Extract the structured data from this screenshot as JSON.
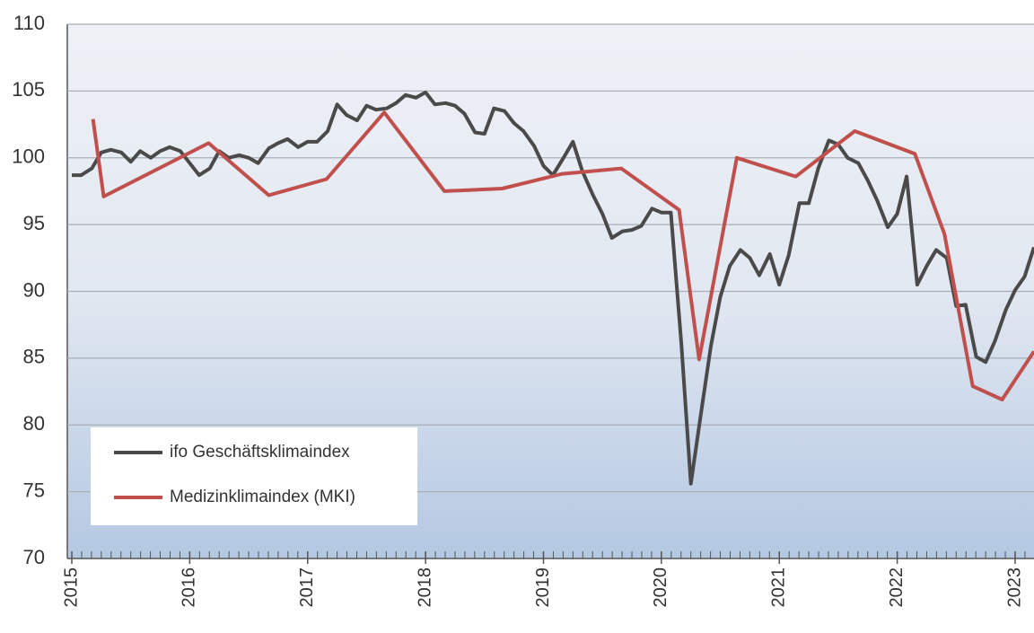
{
  "chart_data": {
    "type": "line",
    "xlim": [
      2015,
      2023.16
    ],
    "xticks": [
      2015,
      2016,
      2017,
      2018,
      2019,
      2020,
      2021,
      2022,
      2023
    ],
    "ylim": [
      70,
      110
    ],
    "yticks": [
      70,
      75,
      80,
      85,
      90,
      95,
      100,
      105,
      110
    ],
    "grid": true,
    "legend": "lower left",
    "series": [
      {
        "name": "ifo Geschäftsklimaindex",
        "color": "#4a4a4a",
        "x": [
          2015,
          2015.08,
          2015.17,
          2015.25,
          2015.33,
          2015.42,
          2015.5,
          2015.58,
          2015.67,
          2015.75,
          2015.83,
          2015.92,
          2016,
          2016.08,
          2016.17,
          2016.25,
          2016.33,
          2016.42,
          2016.5,
          2016.58,
          2016.67,
          2016.75,
          2016.83,
          2016.92,
          2017,
          2017.08,
          2017.17,
          2017.25,
          2017.33,
          2017.42,
          2017.5,
          2017.58,
          2017.67,
          2017.75,
          2017.83,
          2017.92,
          2018,
          2018.08,
          2018.17,
          2018.25,
          2018.33,
          2018.42,
          2018.5,
          2018.58,
          2018.67,
          2018.75,
          2018.83,
          2018.92,
          2019,
          2019.08,
          2019.17,
          2019.25,
          2019.33,
          2019.42,
          2019.5,
          2019.58,
          2019.67,
          2019.75,
          2019.83,
          2019.92,
          2020,
          2020.08,
          2020.17,
          2020.25,
          2020.33,
          2020.42,
          2020.5,
          2020.58,
          2020.67,
          2020.75,
          2020.83,
          2020.92,
          2021,
          2021.08,
          2021.17,
          2021.25,
          2021.33,
          2021.42,
          2021.5,
          2021.58,
          2021.67,
          2021.75,
          2021.83,
          2021.92,
          2022,
          2022.08,
          2022.17,
          2022.25,
          2022.33,
          2022.42,
          2022.5,
          2022.58,
          2022.67,
          2022.75,
          2022.83,
          2022.92,
          2023,
          2023.08,
          2023.16
        ],
        "values": [
          98.7,
          98.7,
          99.2,
          100.4,
          100.6,
          100.4,
          99.7,
          100.5,
          100.0,
          100.5,
          100.8,
          100.5,
          99.6,
          98.7,
          99.2,
          100.5,
          100.0,
          100.2,
          100.0,
          99.6,
          100.7,
          101.1,
          101.4,
          100.8,
          101.2,
          101.2,
          102.0,
          104.0,
          103.2,
          102.8,
          103.9,
          103.6,
          103.7,
          104.1,
          104.7,
          104.5,
          104.9,
          104.0,
          104.1,
          103.9,
          103.3,
          101.9,
          101.8,
          103.7,
          103.5,
          102.6,
          102.0,
          100.9,
          99.4,
          98.7,
          100.0,
          101.2,
          99.0,
          97.2,
          95.8,
          94.0,
          94.5,
          94.6,
          94.9,
          96.2,
          95.9,
          95.9,
          86.0,
          75.6,
          80.5,
          85.9,
          89.6,
          91.9,
          93.1,
          92.5,
          91.2,
          92.8,
          90.5,
          92.7,
          96.6,
          96.6,
          99.2,
          101.3,
          101.0,
          100.0,
          99.6,
          98.3,
          96.8,
          94.8,
          95.8,
          98.6,
          90.5,
          91.9,
          93.1,
          92.5,
          88.9,
          89.0,
          85.1,
          84.7,
          86.3,
          88.6,
          90.1,
          91.1,
          93.3
        ]
      },
      {
        "name": "Medizinklimaindex (MKI)",
        "color": "#c0504d",
        "x": [
          2015.18,
          2015.27,
          2016.16,
          2016.67,
          2017.16,
          2017.65,
          2018.16,
          2018.65,
          2019.16,
          2019.66,
          2020.15,
          2020.32,
          2020.64,
          2021.14,
          2021.64,
          2022.15,
          2022.4,
          2022.64,
          2022.89,
          2023.16
        ],
        "values": [
          102.9,
          97.1,
          101.1,
          97.2,
          98.4,
          103.4,
          97.5,
          97.7,
          98.8,
          99.2,
          96.1,
          84.9,
          100.0,
          98.6,
          102.0,
          100.3,
          94.3,
          82.9,
          81.9,
          85.5
        ]
      }
    ]
  }
}
